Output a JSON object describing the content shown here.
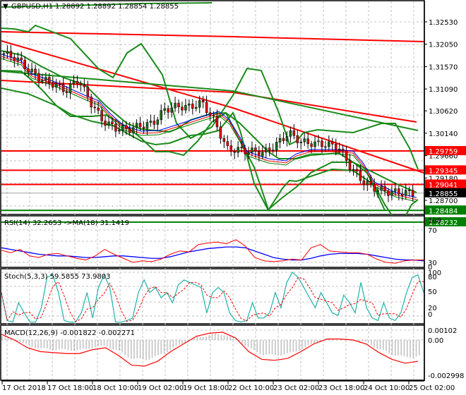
{
  "header": {
    "symbol_label": "GBPUSD,H1",
    "ohlc": "1.28892 1.28892 1.28854 1.28855"
  },
  "indicators": {
    "rsi_label": "RSI(14) 32.2653  ->MA(18) 31.1419",
    "stoch_label": "Stoch(5,3,3) 59.5855 73.9803",
    "macd_label": "MACD(12,26,9) -0.001822 -0.002271"
  },
  "colors": {
    "bull_candle": "#1c6b1c",
    "bear_candle": "#e00000",
    "resistance_line": "#ff0000",
    "support_line": "#008000",
    "bollinger": "#1a8a1a",
    "ma_blue": "#0000ff",
    "ma_red": "#ff0000",
    "ma_green": "#008000",
    "rsi_line": "#ff0000",
    "rsi_ma": "#0000ff",
    "stoch_main": "#20b2aa",
    "stoch_signal": "#ff0000",
    "macd_signal": "#ff0000",
    "macd_hist": "#c0c0c0",
    "current_price_bg": "#000000"
  },
  "price_axis": {
    "ticks": [
      "1.32530",
      "1.32050",
      "1.31570",
      "1.31090",
      "1.30620",
      "1.30140",
      "1.29660",
      "1.29180",
      "1.28700"
    ],
    "tags": [
      {
        "value": "1.29759",
        "color": "#ff0000"
      },
      {
        "value": "1.29345",
        "color": "#ff0000"
      },
      {
        "value": "1.29041",
        "color": "#ff0000"
      },
      {
        "value": "1.28855",
        "color": "#000000"
      },
      {
        "value": "1.28484",
        "color": "#008000"
      },
      {
        "value": "1.28232",
        "color": "#008000"
      }
    ]
  },
  "rsi_axis": {
    "ticks": [
      "100",
      "70",
      "30",
      "0"
    ]
  },
  "stoch_axis": {
    "ticks": [
      "100",
      "80",
      "50",
      "20",
      "0"
    ]
  },
  "macd_axis": {
    "ticks": [
      "0.00102",
      "0.00",
      "-0.002998"
    ]
  },
  "time_axis": {
    "labels": [
      "17 Oct 2018",
      "17 Oct 18:00",
      "18 Oct 10:00",
      "19 Oct 02:00",
      "19 Oct 18:00",
      "22 Oct 10:00",
      "23 Oct 02:00",
      "23 Oct 18:00",
      "24 Oct 10:00",
      "25 Oct 02:00"
    ]
  },
  "chart_data": [
    {
      "type": "candlestick",
      "title": "GBPUSD,H1",
      "symbol": "GBPUSD",
      "timeframe": "H1",
      "last_ohlc": {
        "open": 1.28892,
        "high": 1.28892,
        "low": 1.28854,
        "close": 1.28855
      },
      "x_labels": [
        "17 Oct 2018",
        "17 Oct 18:00",
        "18 Oct 10:00",
        "19 Oct 02:00",
        "19 Oct 18:00",
        "22 Oct 10:00",
        "23 Oct 02:00",
        "23 Oct 18:00",
        "24 Oct 10:00",
        "25 Oct 02:00"
      ],
      "approx_close_path": [
        1.3185,
        1.3175,
        1.315,
        1.313,
        1.312,
        1.3105,
        1.313,
        1.308,
        1.304,
        1.3025,
        1.3022,
        1.303,
        1.3035,
        1.3065,
        1.3072,
        1.307,
        1.308,
        1.304,
        1.298,
        1.2978,
        1.2975,
        1.2972,
        1.299,
        1.3015,
        1.2995,
        1.2992,
        1.299,
        1.2985,
        1.294,
        1.291,
        1.2895,
        1.2888,
        1.2887,
        1.2886
      ],
      "horizontal_levels": {
        "resistance": [
          1.29759,
          1.29345,
          1.29041
        ],
        "support": [
          1.28484,
          1.28232
        ]
      },
      "trendlines": "two descending red trendlines, one descending green channel line",
      "overlays": [
        "Bollinger Bands (green)",
        "3 moving averages (blue, red, green)"
      ],
      "ylim": [
        1.2815,
        1.3285
      ]
    },
    {
      "type": "line",
      "title": "RSI(14)",
      "series": [
        {
          "name": "RSI(14)",
          "last": 32.2653
        },
        {
          "name": "MA(18)",
          "last": 31.1419
        }
      ],
      "y_ticks": [
        0,
        30,
        70,
        100
      ],
      "ylim": [
        0,
        100
      ]
    },
    {
      "type": "line",
      "title": "Stoch(5,3,3)",
      "series": [
        {
          "name": "%K",
          "last": 59.5855
        },
        {
          "name": "%D",
          "last": 73.9803
        }
      ],
      "y_ticks": [
        0,
        20,
        50,
        80,
        100
      ],
      "ylim": [
        0,
        100
      ]
    },
    {
      "type": "bar",
      "title": "MACD(12,26,9)",
      "series": [
        {
          "name": "MACD histogram",
          "last": -0.001822
        },
        {
          "name": "Signal",
          "last": -0.002271
        }
      ],
      "y_ticks": [
        -0.002998,
        0.0,
        0.00102
      ],
      "ylim": [
        -0.0032,
        0.0013
      ]
    }
  ]
}
